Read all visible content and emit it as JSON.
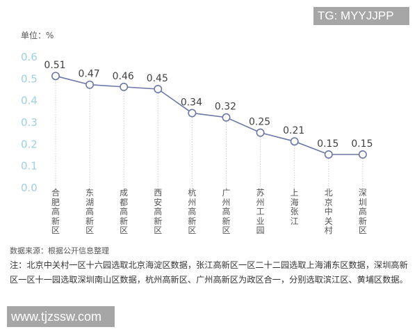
{
  "watermarks": {
    "top": "TG: MYYJJPP",
    "bottom": "www.tjzssw.com"
  },
  "unit_label": "单位：%",
  "source": "数据来源：根据公开信息整理",
  "note": "注：北京中关村一区十六园选取北京海淀区数据，张江高新区一区二十二园选取上海浦东区数据，深圳高新区一区十一园选取深圳南山区数据，杭州高新区、广州高新区为政区合一，分别选取滨江区、黄埔区数据。",
  "colors": {
    "line": "#6b77a6",
    "marker_fill": "#ffffff",
    "ytick": "#9fd0e0",
    "grid": "#cccccc"
  },
  "chart_data": {
    "type": "line",
    "title": "",
    "xlabel": "",
    "ylabel": "单位：%",
    "ylim": [
      0.0,
      0.6
    ],
    "yticks": [
      "0.0",
      "0.1",
      "0.2",
      "0.3",
      "0.4",
      "0.5",
      "0.6"
    ],
    "grid": "vertical dotted lines at each category",
    "legend": null,
    "categories": [
      "合肥高新区",
      "东湖高新区",
      "成都高新区",
      "西安高新区",
      "杭州高新区",
      "广州高新区",
      "苏州工业园",
      "上海张江",
      "北京中关村",
      "深圳高新区"
    ],
    "values": [
      0.51,
      0.47,
      0.46,
      0.45,
      0.34,
      0.32,
      0.25,
      0.21,
      0.15,
      0.15
    ],
    "labels": [
      "0.51",
      "0.47",
      "0.46",
      "0.45",
      "0.34",
      "0.32",
      "0.25",
      "0.21",
      "0.15",
      "0.15"
    ]
  }
}
